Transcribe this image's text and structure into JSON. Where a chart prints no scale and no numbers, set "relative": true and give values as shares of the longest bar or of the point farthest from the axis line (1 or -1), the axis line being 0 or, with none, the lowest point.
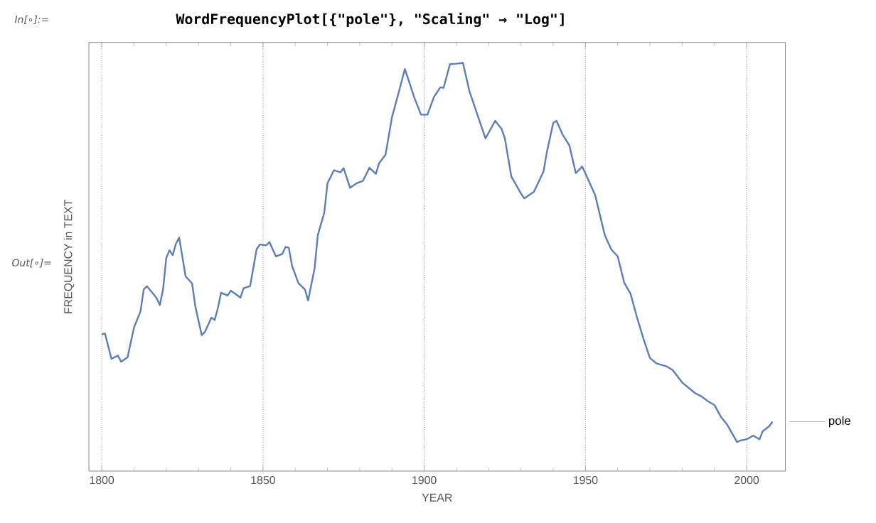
{
  "chart_data": {
    "type": "line",
    "title": "WordFrequencyPlot[{\"pole\"}, \"Scaling\" → \"Log\"]",
    "annotations": [
      "In[∘]:=",
      "Out[∘]="
    ],
    "xlabel": "YEAR",
    "ylabel": "FREQUENCY in TEXT",
    "relative": true,
    "xlim": [
      1796,
      2012
    ],
    "xticks": [
      1800,
      1850,
      1900,
      1950,
      2000
    ],
    "grid": "x",
    "legend": "right",
    "series": [
      {
        "name": "pole",
        "color": "#5b7db8",
        "x": [
          1800,
          1801,
          1803,
          1805,
          1806,
          1808,
          1810,
          1812,
          1813,
          1814,
          1816,
          1817,
          1818,
          1819,
          1820,
          1821,
          1822,
          1823,
          1824,
          1826,
          1828,
          1829,
          1831,
          1832,
          1834,
          1835,
          1836,
          1837,
          1839,
          1840,
          1843,
          1844,
          1846,
          1848,
          1849,
          1851,
          1852,
          1854,
          1856,
          1857,
          1858,
          1859,
          1861,
          1863,
          1864,
          1866,
          1867,
          1869,
          1870,
          1872,
          1874,
          1875,
          1877,
          1879,
          1881,
          1883,
          1885,
          1886,
          1888,
          1890,
          1892,
          1894,
          1897,
          1899,
          1901,
          1903,
          1905,
          1906,
          1908,
          1910,
          1912,
          1914,
          1918,
          1919,
          1922,
          1924,
          1925,
          1927,
          1930,
          1931,
          1934,
          1937,
          1938,
          1940,
          1941,
          1943,
          1945,
          1947,
          1949,
          1950,
          1953,
          1956,
          1958,
          1960,
          1962,
          1964,
          1966,
          1968,
          1970,
          1972,
          1975,
          1977,
          1980,
          1984,
          1986,
          1988,
          1990,
          1992,
          1994,
          1997,
          1998,
          2000,
          2002,
          2004,
          2005,
          2007,
          2008
        ],
        "values": [
          0.335,
          0.337,
          0.275,
          0.283,
          0.268,
          0.279,
          0.352,
          0.391,
          0.445,
          0.453,
          0.434,
          0.424,
          0.407,
          0.445,
          0.522,
          0.541,
          0.529,
          0.557,
          0.572,
          0.477,
          0.46,
          0.404,
          0.333,
          0.341,
          0.376,
          0.37,
          0.399,
          0.437,
          0.43,
          0.442,
          0.425,
          0.448,
          0.453,
          0.543,
          0.555,
          0.553,
          0.561,
          0.526,
          0.532,
          0.549,
          0.547,
          0.503,
          0.46,
          0.445,
          0.418,
          0.497,
          0.578,
          0.633,
          0.705,
          0.737,
          0.732,
          0.742,
          0.694,
          0.705,
          0.711,
          0.743,
          0.728,
          0.754,
          0.775,
          0.867,
          0.925,
          0.985,
          0.913,
          0.873,
          0.873,
          0.916,
          0.94,
          0.939,
          0.997,
          0.998,
          1.0,
          0.931,
          0.838,
          0.815,
          0.858,
          0.838,
          0.815,
          0.722,
          0.68,
          0.668,
          0.684,
          0.734,
          0.78,
          0.853,
          0.858,
          0.823,
          0.798,
          0.73,
          0.746,
          0.729,
          0.676,
          0.578,
          0.543,
          0.526,
          0.462,
          0.434,
          0.376,
          0.324,
          0.277,
          0.264,
          0.257,
          0.248,
          0.217,
          0.191,
          0.183,
          0.171,
          0.162,
          0.133,
          0.113,
          0.071,
          0.075,
          0.078,
          0.087,
          0.078,
          0.098,
          0.11,
          0.121
        ]
      }
    ]
  }
}
